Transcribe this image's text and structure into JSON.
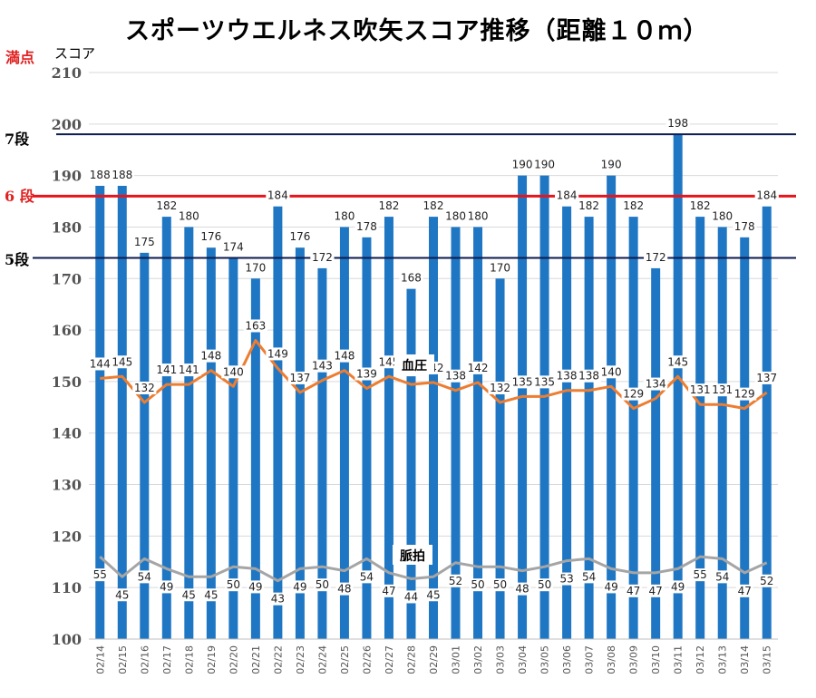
{
  "title": "スポーツウエルネス吹矢スコア推移（距離１０ｍ）",
  "labels": {
    "full_score": "満点",
    "score_unit": "スコア",
    "dan7": "7段",
    "dan6": "6 段",
    "dan5": "5段",
    "bp_label": "血圧",
    "pulse_label": "脈拍"
  },
  "colors": {
    "bars": "#1f77c4",
    "blood_pressure": "#ed7d31",
    "pulse": "#a5a5a5",
    "dan7_line": "#0d1b4f",
    "dan6_line": "#e8141c",
    "dan5_line": "#0d1b4f",
    "grid": "#d9d9d9"
  },
  "chart_data": {
    "type": "bar",
    "title": "スポーツウエルネス吹矢スコア推移（距離１０ｍ）",
    "ylabel": "スコア",
    "ylim": [
      100,
      210
    ],
    "yticks": [
      100,
      110,
      120,
      130,
      140,
      150,
      160,
      170,
      180,
      190,
      200,
      210
    ],
    "grid": true,
    "categories": [
      "02/14",
      "02/15",
      "02/16",
      "02/17",
      "02/18",
      "02/19",
      "02/20",
      "02/21",
      "02/22",
      "02/23",
      "02/24",
      "02/25",
      "02/26",
      "02/27",
      "02/28",
      "02/29",
      "03/01",
      "03/02",
      "03/03",
      "03/04",
      "03/05",
      "03/06",
      "03/07",
      "03/08",
      "03/09",
      "03/10",
      "03/11",
      "03/12",
      "03/13",
      "03/14",
      "03/15"
    ],
    "series": [
      {
        "name": "スコア",
        "type": "bar",
        "values": [
          188,
          188,
          175,
          182,
          180,
          176,
          174,
          170,
          184,
          176,
          172,
          180,
          178,
          182,
          168,
          182,
          180,
          180,
          170,
          190,
          190,
          184,
          182,
          190,
          182,
          172,
          198,
          182,
          180,
          178,
          184
        ]
      },
      {
        "name": "血圧",
        "type": "line",
        "values": [
          144,
          145,
          132,
          141,
          141,
          148,
          140,
          163,
          149,
          137,
          143,
          148,
          139,
          145,
          141,
          142,
          138,
          142,
          132,
          135,
          135,
          138,
          138,
          140,
          129,
          134,
          145,
          131,
          131,
          129,
          137
        ]
      },
      {
        "name": "脈拍",
        "type": "line",
        "values": [
          55,
          45,
          54,
          49,
          45,
          45,
          50,
          49,
          43,
          49,
          50,
          48,
          54,
          47,
          44,
          45,
          52,
          50,
          50,
          48,
          50,
          53,
          54,
          49,
          47,
          47,
          49,
          55,
          54,
          47,
          52
        ]
      }
    ],
    "reference_lines": [
      {
        "label": "7段",
        "value": 198
      },
      {
        "label": "6 段",
        "value": 186
      },
      {
        "label": "5段",
        "value": 174
      }
    ]
  }
}
